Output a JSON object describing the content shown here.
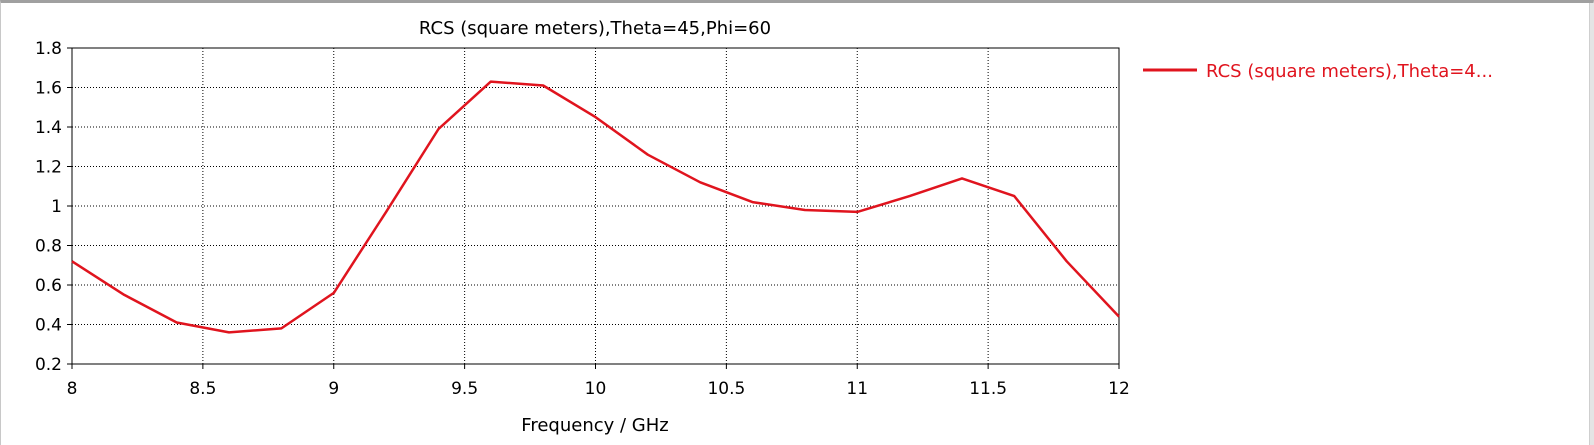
{
  "chart_data": {
    "type": "line",
    "title": "RCS (square meters),Theta=45,Phi=60",
    "xlabel": "Frequency / GHz",
    "ylabel": "",
    "xlim": [
      8,
      12
    ],
    "ylim": [
      0.2,
      1.8
    ],
    "x_ticks": [
      8,
      8.5,
      9,
      9.5,
      10,
      10.5,
      11,
      11.5,
      12
    ],
    "x_tick_labels": [
      "8",
      "8.5",
      "9",
      "9.5",
      "10",
      "10.5",
      "11",
      "11.5",
      "12"
    ],
    "y_ticks": [
      0.2,
      0.4,
      0.6,
      0.8,
      1,
      1.2,
      1.4,
      1.6,
      1.8
    ],
    "y_tick_labels": [
      "0.2",
      "0.4",
      "0.6",
      "0.8",
      "1",
      "1.2",
      "1.4",
      "1.6",
      "1.8"
    ],
    "grid": true,
    "legend_position": "right",
    "series": [
      {
        "name": "RCS (square meters),Theta=4...",
        "color": "#e0141e",
        "x": [
          8,
          8.2,
          8.4,
          8.6,
          8.8,
          9,
          9.2,
          9.4,
          9.6,
          9.8,
          10,
          10.2,
          10.4,
          10.6,
          10.8,
          11,
          11.2,
          11.4,
          11.6,
          11.8,
          12
        ],
        "y": [
          0.72,
          0.55,
          0.41,
          0.36,
          0.38,
          0.56,
          0.97,
          1.39,
          1.63,
          1.61,
          1.45,
          1.26,
          1.12,
          1.02,
          0.98,
          0.97,
          1.05,
          1.14,
          1.05,
          0.72,
          0.44
        ]
      }
    ]
  }
}
